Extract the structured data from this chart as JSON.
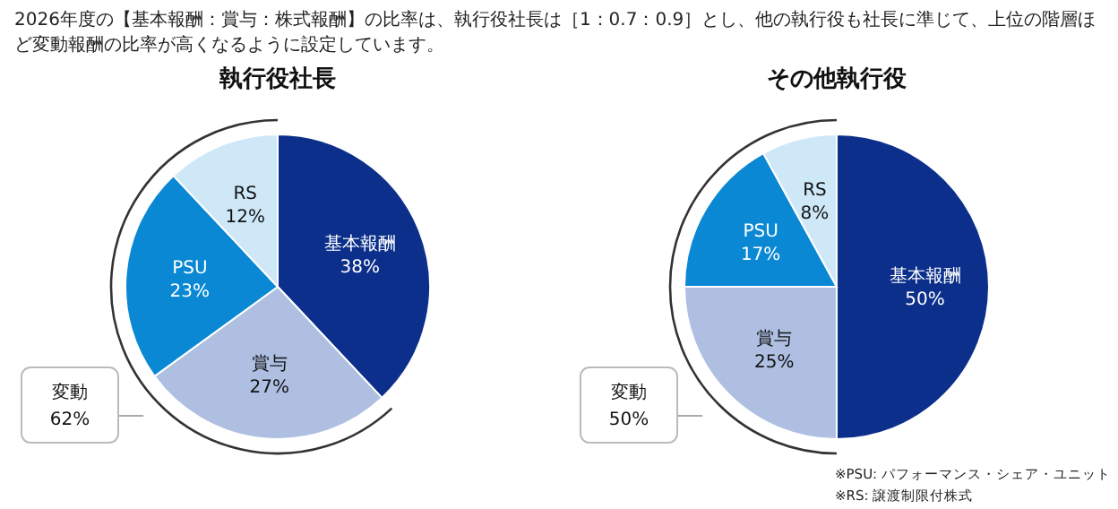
{
  "chart_data": [
    {
      "type": "pie",
      "subtitle": "2026年度の【基本報酬：賞与：株式報酬】の比率は、執行役社長は［1：0.7：0.9］とし、他の執行役も社長に準じて、上位の階層ほど変動報酬の比率が高くなるように設定しています。",
      "title": "執行役社長",
      "categories": [
        "基本報酬",
        "賞与",
        "PSU",
        "RS"
      ],
      "values": [
        38,
        27,
        23,
        12
      ],
      "value_labels": [
        "38%",
        "27%",
        "23%",
        "12%"
      ],
      "colors": [
        "#0b2f8a",
        "#aebfe2",
        "#0a88d4",
        "#cfe8f8"
      ],
      "annotations": [
        "変動\n62%"
      ]
    },
    {
      "type": "pie",
      "title": "その他執行役",
      "categories": [
        "基本報酬",
        "賞与",
        "PSU",
        "RS"
      ],
      "values": [
        50,
        25,
        17,
        8
      ],
      "value_labels": [
        "50%",
        "25%",
        "17%",
        "8%"
      ],
      "colors": [
        "#0b2f8a",
        "#aebfe2",
        "#0a88d4",
        "#cfe8f8"
      ],
      "annotations": [
        "変動\n50%",
        "※PSU: パフォーマンス・シェア・ユニット",
        "※RS: 譲渡制限付株式"
      ]
    }
  ]
}
